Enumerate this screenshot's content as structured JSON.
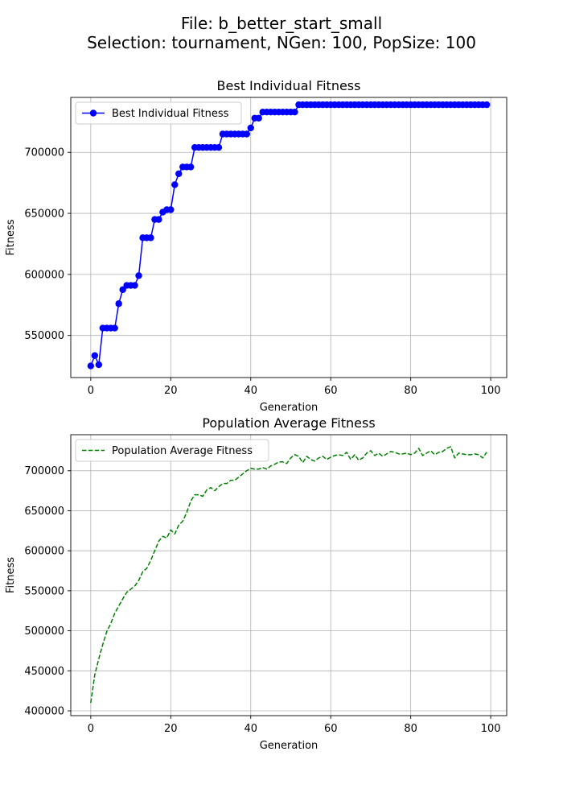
{
  "figure": {
    "title_line1": "File: b_better_start_small",
    "title_line2": "Selection: tournament, NGen: 100, PopSize: 100"
  },
  "chart_data": [
    {
      "type": "line",
      "title": "Best Individual Fitness",
      "xlabel": "Generation",
      "ylabel": "Fitness",
      "xlim": [
        -5,
        104
      ],
      "ylim": [
        515500,
        745000
      ],
      "xticks": [
        0,
        20,
        40,
        60,
        80,
        100
      ],
      "yticks": [
        550000,
        600000,
        650000,
        700000
      ],
      "grid": true,
      "legend": "top-left",
      "series": [
        {
          "name": "Best Individual Fitness",
          "color": "#0000ff",
          "linestyle": "solid",
          "marker": "circle",
          "x": [
            0,
            1,
            2,
            3,
            4,
            5,
            6,
            7,
            8,
            9,
            10,
            11,
            12,
            13,
            14,
            15,
            16,
            17,
            18,
            19,
            20,
            21,
            22,
            23,
            24,
            25,
            26,
            27,
            28,
            29,
            30,
            31,
            32,
            33,
            34,
            35,
            36,
            37,
            38,
            39,
            40,
            41,
            42,
            43,
            44,
            45,
            46,
            47,
            48,
            49,
            50,
            51,
            52,
            53,
            54,
            55,
            56,
            57,
            58,
            59,
            60,
            61,
            62,
            63,
            64,
            65,
            66,
            67,
            68,
            69,
            70,
            71,
            72,
            73,
            74,
            75,
            76,
            77,
            78,
            79,
            80,
            81,
            82,
            83,
            84,
            85,
            86,
            87,
            88,
            89,
            90,
            91,
            92,
            93,
            94,
            95,
            96,
            97,
            98,
            99
          ],
          "values": [
            525000,
            533500,
            526000,
            556000,
            556000,
            556000,
            556000,
            576000,
            587500,
            591000,
            591000,
            591000,
            599000,
            630000,
            630000,
            630000,
            645000,
            645000,
            651000,
            653000,
            653000,
            673500,
            682500,
            688000,
            688000,
            688000,
            704000,
            704000,
            704000,
            704000,
            704000,
            704000,
            704000,
            715000,
            715000,
            715000,
            715000,
            715000,
            715000,
            715000,
            720000,
            728000,
            728000,
            733000,
            733000,
            733000,
            733000,
            733000,
            733000,
            733000,
            733000,
            733000,
            739000,
            739000,
            739000,
            739000,
            739000,
            739000,
            739000,
            739000,
            739000,
            739000,
            739000,
            739000,
            739000,
            739000,
            739000,
            739000,
            739000,
            739000,
            739000,
            739000,
            739000,
            739000,
            739000,
            739000,
            739000,
            739000,
            739000,
            739000,
            739000,
            739000,
            739000,
            739000,
            739000,
            739000,
            739000,
            739000,
            739000,
            739000,
            739000,
            739000,
            739000,
            739000,
            739000,
            739000,
            739000,
            739000,
            739000,
            739000
          ]
        }
      ]
    },
    {
      "type": "line",
      "title": "Population Average Fitness",
      "xlabel": "Generation",
      "ylabel": "Fitness",
      "xlim": [
        -5,
        104
      ],
      "ylim": [
        394000,
        745000
      ],
      "xticks": [
        0,
        20,
        40,
        60,
        80,
        100
      ],
      "yticks": [
        400000,
        450000,
        500000,
        550000,
        600000,
        650000,
        700000
      ],
      "grid": true,
      "legend": "top-left",
      "series": [
        {
          "name": "Population Average Fitness",
          "color": "#008000",
          "linestyle": "dashed",
          "marker": "none",
          "x": [
            0,
            1,
            2,
            3,
            4,
            5,
            6,
            7,
            8,
            9,
            10,
            11,
            12,
            13,
            14,
            15,
            16,
            17,
            18,
            19,
            20,
            21,
            22,
            23,
            24,
            25,
            26,
            27,
            28,
            29,
            30,
            31,
            32,
            33,
            34,
            35,
            36,
            37,
            38,
            39,
            40,
            41,
            42,
            43,
            44,
            45,
            46,
            47,
            48,
            49,
            50,
            51,
            52,
            53,
            54,
            55,
            56,
            57,
            58,
            59,
            60,
            61,
            62,
            63,
            64,
            65,
            66,
            67,
            68,
            69,
            70,
            71,
            72,
            73,
            74,
            75,
            76,
            77,
            78,
            79,
            80,
            81,
            82,
            83,
            84,
            85,
            86,
            87,
            88,
            89,
            90,
            91,
            92,
            93,
            94,
            95,
            96,
            97,
            98,
            99
          ],
          "values": [
            410000,
            445000,
            465000,
            483000,
            499000,
            509000,
            522000,
            531000,
            540000,
            548000,
            552000,
            556000,
            563000,
            574000,
            578000,
            588000,
            600000,
            612000,
            618000,
            616000,
            626000,
            621000,
            632000,
            637000,
            648000,
            662000,
            670000,
            670000,
            668000,
            676000,
            679000,
            675000,
            680000,
            684000,
            684000,
            688000,
            688000,
            692000,
            696000,
            700000,
            703000,
            702000,
            702000,
            704000,
            702000,
            706000,
            708000,
            711000,
            711000,
            709000,
            716000,
            720000,
            718000,
            710000,
            718000,
            714000,
            712000,
            716000,
            718000,
            714000,
            717000,
            719000,
            720000,
            719000,
            723000,
            714000,
            720000,
            713000,
            716000,
            722000,
            725000,
            719000,
            722000,
            718000,
            721000,
            724000,
            723000,
            721000,
            721000,
            722000,
            720000,
            722000,
            728000,
            719000,
            722000,
            725000,
            720000,
            723000,
            724000,
            728000,
            730000,
            716000,
            722000,
            721000,
            720000,
            720000,
            721000,
            720000,
            716000,
            723000
          ]
        }
      ]
    }
  ]
}
